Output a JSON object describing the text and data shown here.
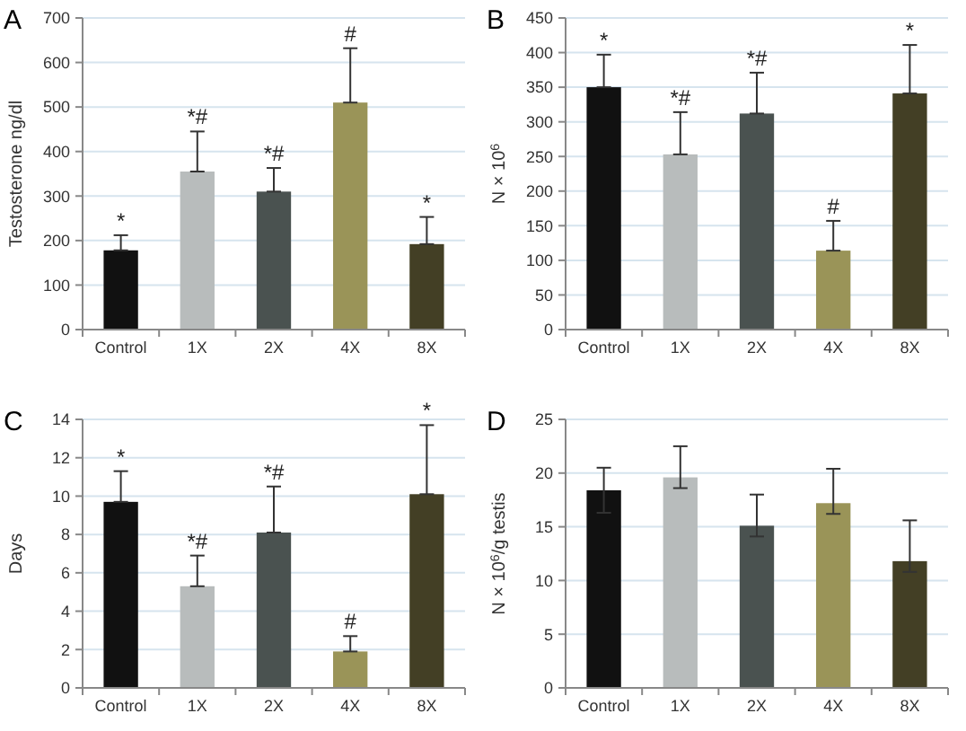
{
  "chart_data": [
    {
      "type": "bar",
      "title": "A",
      "ylabel": "Testosterone ng/dl",
      "categories": [
        "Control",
        "1X",
        "2X",
        "4X",
        "8X"
      ],
      "values": [
        178,
        355,
        310,
        510,
        192
      ],
      "colors": [
        "#111111",
        "#b8bcbc",
        "#4a5250",
        "#9a9458",
        "#433f25"
      ],
      "errors": [
        [
          178,
          212
        ],
        [
          355,
          445
        ],
        [
          310,
          363
        ],
        [
          510,
          632
        ],
        [
          192,
          253
        ]
      ],
      "ylim": [
        0,
        700
      ],
      "yticks": [
        0,
        100,
        200,
        300,
        400,
        500,
        600,
        700
      ],
      "grid": "y",
      "annotations": [
        {
          "text": "*",
          "x": "Control",
          "y": 212
        },
        {
          "text": "*#",
          "x": "1X",
          "y": 445
        },
        {
          "text": "*#",
          "x": "2X",
          "y": 363
        },
        {
          "text": "#",
          "x": "4X",
          "y": 632
        },
        {
          "text": "*",
          "x": "8X",
          "y": 253
        }
      ]
    },
    {
      "type": "bar",
      "title": "B",
      "ylabel": "N × 10$^{6}$",
      "categories": [
        "Control",
        "1X",
        "2X",
        "4X",
        "8X"
      ],
      "values": [
        350,
        253,
        312,
        114,
        341
      ],
      "colors": [
        "#111111",
        "#b8bcbc",
        "#4a5250",
        "#9a9458",
        "#433f25"
      ],
      "errors": [
        [
          350,
          397
        ],
        [
          253,
          314
        ],
        [
          312,
          371
        ],
        [
          114,
          157
        ],
        [
          341,
          411
        ]
      ],
      "ylim": [
        0,
        450
      ],
      "yticks": [
        0,
        50,
        100,
        150,
        200,
        250,
        300,
        350,
        400,
        450
      ],
      "grid": "y",
      "annotations": [
        {
          "text": "*",
          "x": "Control",
          "y": 397
        },
        {
          "text": "*#",
          "x": "1X",
          "y": 314
        },
        {
          "text": "*#",
          "x": "2X",
          "y": 371
        },
        {
          "text": "#",
          "x": "4X",
          "y": 157
        },
        {
          "text": "*",
          "x": "8X",
          "y": 411
        }
      ]
    },
    {
      "type": "bar",
      "title": "C",
      "ylabel": "Days",
      "categories": [
        "Control",
        "1X",
        "2X",
        "4X",
        "8X"
      ],
      "values": [
        9.7,
        5.3,
        8.1,
        1.9,
        10.1
      ],
      "colors": [
        "#111111",
        "#b8bcbc",
        "#4a5250",
        "#9a9458",
        "#433f25"
      ],
      "errors": [
        [
          9.7,
          11.3
        ],
        [
          5.3,
          6.9
        ],
        [
          8.1,
          10.5
        ],
        [
          1.9,
          2.7
        ],
        [
          10.1,
          13.7
        ]
      ],
      "ylim": [
        0,
        14
      ],
      "yticks": [
        0,
        2,
        4,
        6,
        8,
        10,
        12,
        14
      ],
      "grid": "y",
      "annotations": [
        {
          "text": "*",
          "x": "Control",
          "y": 11.3
        },
        {
          "text": "*#",
          "x": "1X",
          "y": 6.9
        },
        {
          "text": "*#",
          "x": "2X",
          "y": 10.5
        },
        {
          "text": "#",
          "x": "4X",
          "y": 2.7
        },
        {
          "text": "*",
          "x": "8X",
          "y": 13.7
        }
      ]
    },
    {
      "type": "bar",
      "title": "D",
      "ylabel": "N × 10$^{6}$/g testis",
      "categories": [
        "Control",
        "1X",
        "2X",
        "4X",
        "8X"
      ],
      "values": [
        18.4,
        19.6,
        15.1,
        17.2,
        11.8
      ],
      "colors": [
        "#111111",
        "#b8bcbc",
        "#4a5250",
        "#9a9458",
        "#433f25"
      ],
      "errors": [
        [
          16.3,
          20.5
        ],
        [
          18.6,
          22.5
        ],
        [
          14.1,
          18.0
        ],
        [
          16.2,
          20.4
        ],
        [
          10.8,
          15.6
        ]
      ],
      "ylim": [
        0,
        25
      ],
      "yticks": [
        0,
        5,
        10,
        15,
        20,
        25
      ],
      "grid": "y"
    }
  ]
}
